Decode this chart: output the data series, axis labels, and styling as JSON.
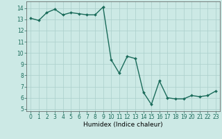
{
  "x": [
    0,
    1,
    2,
    3,
    4,
    5,
    6,
    7,
    8,
    9,
    10,
    11,
    12,
    13,
    14,
    15,
    16,
    17,
    18,
    19,
    20,
    21,
    22,
    23
  ],
  "y": [
    13.1,
    12.9,
    13.6,
    13.9,
    13.4,
    13.6,
    13.5,
    13.4,
    13.4,
    14.1,
    9.4,
    8.2,
    9.7,
    9.5,
    6.5,
    5.4,
    7.5,
    6.0,
    5.9,
    5.9,
    6.2,
    6.1,
    6.2,
    6.6
  ],
  "line_color": "#1a6b5a",
  "marker": "D",
  "marker_size": 2.0,
  "line_width": 1.0,
  "bg_color": "#cce9e5",
  "grid_color": "#aacfcb",
  "xlabel": "Humidex (Indice chaleur)",
  "xlim": [
    -0.5,
    23.5
  ],
  "ylim": [
    4.8,
    14.6
  ],
  "yticks": [
    5,
    6,
    7,
    8,
    9,
    10,
    11,
    12,
    13,
    14
  ],
  "xticks": [
    0,
    1,
    2,
    3,
    4,
    5,
    6,
    7,
    8,
    9,
    10,
    11,
    12,
    13,
    14,
    15,
    16,
    17,
    18,
    19,
    20,
    21,
    22,
    23
  ],
  "tick_fontsize": 5.5,
  "xlabel_fontsize": 6.5
}
